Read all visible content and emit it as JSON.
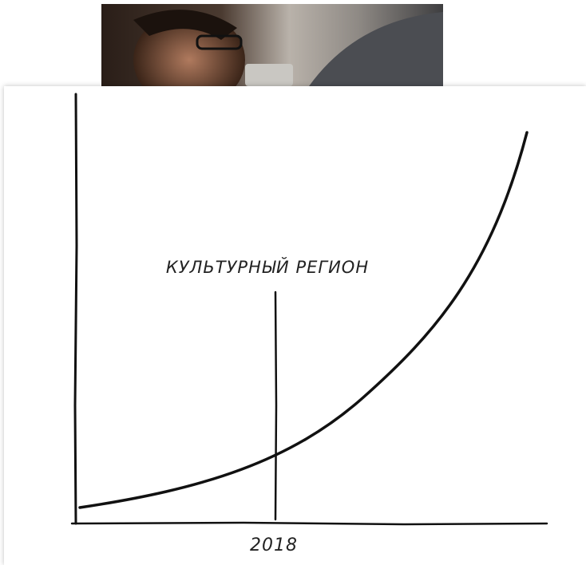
{
  "illustration": {
    "annotation": "КУЛЬТУРНЫЙ РЕГИОН",
    "axis_label": "2018"
  }
}
